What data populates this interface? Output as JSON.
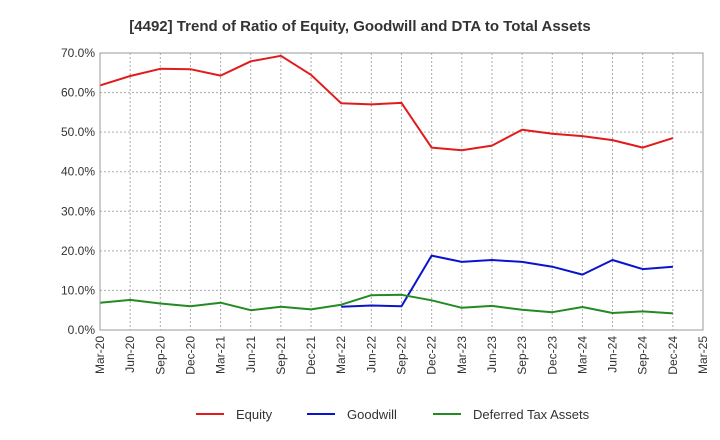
{
  "chart_data": {
    "type": "line",
    "title": "[4492]  Trend of Ratio of Equity, Goodwill and DTA to Total Assets",
    "xlabel": "",
    "ylabel": "",
    "ylim": [
      0,
      70
    ],
    "yticks": [
      0,
      10,
      20,
      30,
      40,
      50,
      60,
      70
    ],
    "ytick_labels": [
      "0.0%",
      "10.0%",
      "20.0%",
      "30.0%",
      "40.0%",
      "50.0%",
      "60.0%",
      "70.0%"
    ],
    "categories": [
      "Mar-20",
      "Jun-20",
      "Sep-20",
      "Dec-20",
      "Mar-21",
      "Jun-21",
      "Sep-21",
      "Dec-21",
      "Mar-22",
      "Jun-22",
      "Sep-22",
      "Dec-22",
      "Mar-23",
      "Jun-23",
      "Sep-23",
      "Dec-23",
      "Mar-24",
      "Jun-24",
      "Sep-24",
      "Dec-24",
      "Mar-25"
    ],
    "grid": true,
    "legend_position": "bottom",
    "series": [
      {
        "name": "Equity",
        "color": "#e31a1c",
        "values": [
          61.8,
          64.2,
          66.0,
          65.9,
          64.3,
          67.9,
          69.3,
          64.5,
          57.3,
          57.0,
          57.4,
          46.1,
          45.4,
          46.6,
          50.6,
          49.6,
          49.0,
          48.0,
          46.1,
          48.5,
          null
        ]
      },
      {
        "name": "Goodwill",
        "color": "#0a14cc",
        "values": [
          null,
          null,
          null,
          null,
          null,
          null,
          null,
          null,
          5.9,
          6.2,
          6.0,
          18.8,
          17.2,
          17.7,
          17.2,
          16.0,
          14.0,
          17.7,
          15.4,
          16.0,
          null
        ]
      },
      {
        "name": "Deferred Tax Assets",
        "color": "#228b22",
        "values": [
          6.9,
          7.6,
          6.7,
          6.0,
          6.9,
          5.0,
          5.9,
          5.2,
          6.4,
          8.8,
          8.9,
          7.5,
          5.6,
          6.1,
          5.1,
          4.5,
          5.8,
          4.3,
          4.7,
          4.2,
          null
        ]
      }
    ]
  }
}
